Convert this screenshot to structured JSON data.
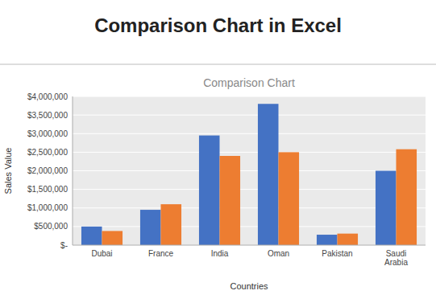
{
  "chart_data": {
    "type": "bar",
    "title": "Comparison Chart in Excel",
    "subtitle": "Comparison Chart",
    "xlabel": "Countries",
    "ylabel": "Sales Value",
    "categories": [
      "Dubai",
      "France",
      "India",
      "Oman",
      "Pakistan",
      "Saudi\nArabia"
    ],
    "series": [
      {
        "color": "#4472C4",
        "values": [
          500000,
          950000,
          2950000,
          3800000,
          280000,
          2000000
        ]
      },
      {
        "color": "#ED7D31",
        "values": [
          380000,
          1100000,
          2400000,
          2500000,
          310000,
          2580000
        ]
      }
    ],
    "ylim": [
      0,
      4000000
    ],
    "yticks": [
      {
        "value": 0,
        "label": "$-"
      },
      {
        "value": 500000,
        "label": "$500,000"
      },
      {
        "value": 1000000,
        "label": "$1,000,000"
      },
      {
        "value": 1500000,
        "label": "$1,500,000"
      },
      {
        "value": 2000000,
        "label": "$2,000,000"
      },
      {
        "value": 2500000,
        "label": "$2,500,000"
      },
      {
        "value": 3000000,
        "label": "$3,000,000"
      },
      {
        "value": 3500000,
        "label": "$3,500,000"
      },
      {
        "value": 4000000,
        "label": "$4,000,000"
      }
    ],
    "grid": true
  }
}
